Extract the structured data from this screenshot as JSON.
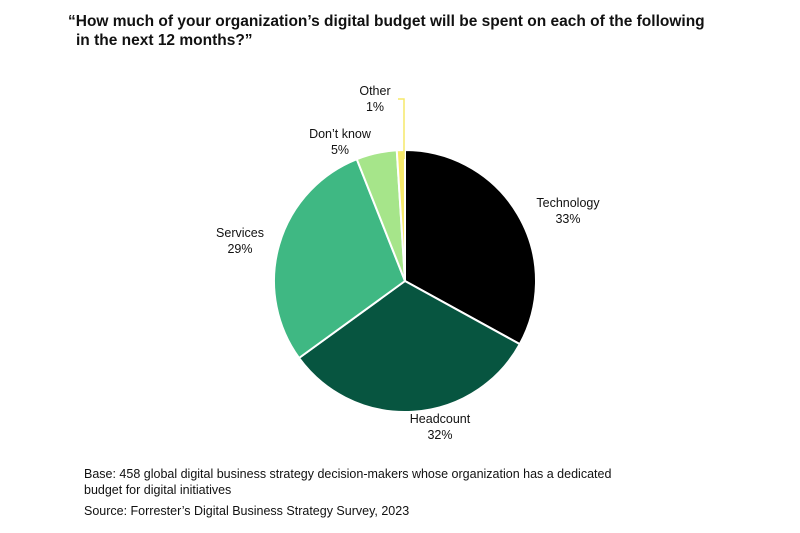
{
  "title_line1": "“How much of your organization’s digital budget will be spent on each of the following",
  "title_line2": "in the next 12 months?”",
  "chart_data": {
    "type": "pie",
    "slices": [
      {
        "label": "Technology",
        "value": 33,
        "value_label": "33%",
        "color": "#000000"
      },
      {
        "label": "Headcount",
        "value": 32,
        "value_label": "32%",
        "color": "#075540"
      },
      {
        "label": "Services",
        "value": 29,
        "value_label": "29%",
        "color": "#3fb883"
      },
      {
        "label": "Don’t know",
        "value": 5,
        "value_label": "5%",
        "color": "#a6e58a"
      },
      {
        "label": "Other",
        "value": 1,
        "value_label": "1%",
        "color": "#f6e96a"
      }
    ]
  },
  "footer": {
    "base_line1": "Base: 458 global digital business strategy decision-makers whose organization has a dedicated",
    "base_line2": "budget for digital initiatives",
    "source": "Source: Forrester’s Digital Business Strategy Survey, 2023"
  }
}
